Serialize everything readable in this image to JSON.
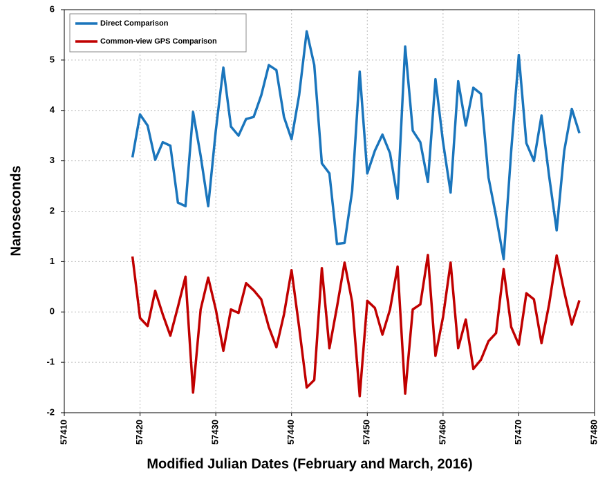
{
  "chart_data": {
    "type": "line",
    "xlabel": "Modified Julian Dates (February and March, 2016)",
    "ylabel": "Nanoseconds",
    "x": [
      57419,
      57420,
      57421,
      57422,
      57423,
      57424,
      57425,
      57426,
      57427,
      57428,
      57429,
      57430,
      57431,
      57432,
      57433,
      57434,
      57435,
      57436,
      57437,
      57438,
      57439,
      57440,
      57441,
      57442,
      57443,
      57444,
      57445,
      57446,
      57447,
      57448,
      57449,
      57450,
      57451,
      57452,
      57453,
      57454,
      57455,
      57456,
      57457,
      57458,
      57459,
      57460,
      57461,
      57462,
      57463,
      57464,
      57465,
      57466,
      57467,
      57468,
      57469,
      57470,
      57471,
      57472,
      57473,
      57474,
      57475,
      57476,
      57477,
      57478
    ],
    "series": [
      {
        "name": "Direct Comparison",
        "color": "#1a75bc",
        "values": [
          3.07,
          3.92,
          3.7,
          3.02,
          3.37,
          3.3,
          2.17,
          2.1,
          3.97,
          3.1,
          2.1,
          3.6,
          4.85,
          3.68,
          3.5,
          3.83,
          3.87,
          4.3,
          4.9,
          4.8,
          3.87,
          3.43,
          4.3,
          5.57,
          4.9,
          2.95,
          2.75,
          1.35,
          1.37,
          2.4,
          4.77,
          2.75,
          3.2,
          3.52,
          3.15,
          2.25,
          5.27,
          3.6,
          3.37,
          2.58,
          4.62,
          3.37,
          2.37,
          4.58,
          3.7,
          4.45,
          4.33,
          2.67,
          1.9,
          1.05,
          3.2,
          5.1,
          3.35,
          3.0,
          3.9,
          2.7,
          1.62,
          3.2,
          4.03,
          3.55
        ]
      },
      {
        "name": "Common-view GPS Comparison",
        "color": "#c00000",
        "values": [
          1.1,
          -0.12,
          -0.28,
          0.42,
          -0.05,
          -0.47,
          0.1,
          0.7,
          -1.6,
          0.05,
          0.68,
          0.05,
          -0.77,
          0.05,
          -0.02,
          0.57,
          0.43,
          0.25,
          -0.3,
          -0.7,
          -0.05,
          0.83,
          -0.3,
          -1.5,
          -1.35,
          0.87,
          -0.72,
          0.1,
          0.98,
          0.2,
          -1.67,
          0.22,
          0.08,
          -0.45,
          0.05,
          0.9,
          -1.62,
          0.05,
          0.15,
          1.13,
          -0.87,
          -0.1,
          0.98,
          -0.72,
          -0.15,
          -1.13,
          -0.95,
          -0.58,
          -0.42,
          0.85,
          -0.3,
          -0.65,
          0.37,
          0.25,
          -0.62,
          0.15,
          1.12,
          0.4,
          -0.25,
          0.23
        ]
      }
    ],
    "xlim": [
      57410,
      57480
    ],
    "xticks": [
      57410,
      57420,
      57430,
      57440,
      57450,
      57460,
      57470,
      57480
    ],
    "ylim": [
      -2,
      6
    ],
    "yticks": [
      -2,
      -1,
      0,
      1,
      2,
      3,
      4,
      5,
      6
    ],
    "grid": true,
    "legend": "upper left"
  }
}
